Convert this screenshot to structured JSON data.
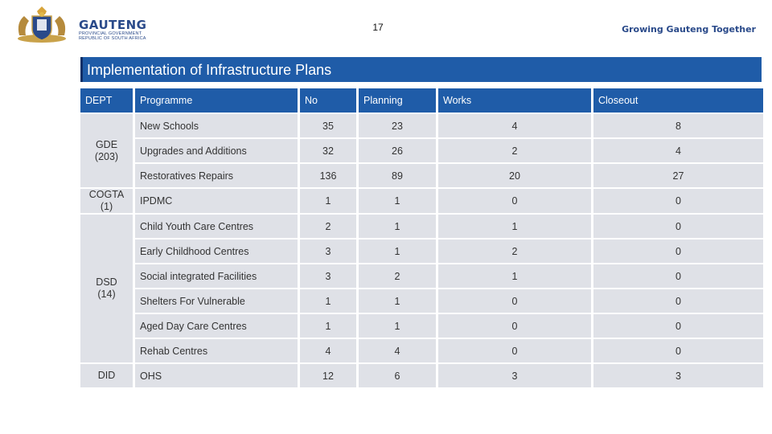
{
  "header": {
    "brand_name": "GAUTENG",
    "brand_sub1": "PROVINCIAL GOVERNMENT",
    "brand_sub2": "REPUBLIC OF SOUTH AFRICA",
    "page_number": "17",
    "slogan": "Growing Gauteng Together"
  },
  "title": "Implementation of Infrastructure Plans",
  "table": {
    "columns": [
      "DEPT",
      "Programme",
      "No",
      "Planning",
      "Works",
      "Closeout"
    ],
    "departments": [
      {
        "line1": "GDE",
        "line2": "(203)"
      },
      {
        "line1": "COGTA",
        "line2": "(1)"
      },
      {
        "line1": "DSD",
        "line2": "(14)"
      },
      {
        "line1": "DID",
        "line2": ""
      }
    ],
    "rows": [
      {
        "programme": "New Schools",
        "no": "35",
        "planning": "23",
        "works": "4",
        "closeout": "8"
      },
      {
        "programme": "Upgrades and Additions",
        "no": "32",
        "planning": "26",
        "works": "2",
        "closeout": "4"
      },
      {
        "programme": "Restoratives Repairs",
        "no": "136",
        "planning": "89",
        "works": "20",
        "closeout": "27"
      },
      {
        "programme": "IPDMC",
        "no": "1",
        "planning": "1",
        "works": "0",
        "closeout": "0"
      },
      {
        "programme": "Child Youth Care Centres",
        "no": "2",
        "planning": "1",
        "works": "1",
        "closeout": "0"
      },
      {
        "programme": "Early Childhood Centres",
        "no": "3",
        "planning": "1",
        "works": "2",
        "closeout": "0"
      },
      {
        "programme": "Social integrated Facilities",
        "no": "3",
        "planning": "2",
        "works": "1",
        "closeout": "0"
      },
      {
        "programme": "Shelters For Vulnerable",
        "no": "1",
        "planning": "1",
        "works": "0",
        "closeout": "0"
      },
      {
        "programme": "Aged Day Care Centres",
        "no": "1",
        "planning": "1",
        "works": "0",
        "closeout": "0"
      },
      {
        "programme": "Rehab Centres",
        "no": "4",
        "planning": "4",
        "works": "0",
        "closeout": "0"
      },
      {
        "programme": "OHS",
        "no": "12",
        "planning": "6",
        "works": "3",
        "closeout": "3"
      }
    ]
  },
  "colors": {
    "header_blue": "#1f5ca8",
    "cell_grey": "#dfe1e7",
    "brand_blue": "#2a4a8a"
  }
}
